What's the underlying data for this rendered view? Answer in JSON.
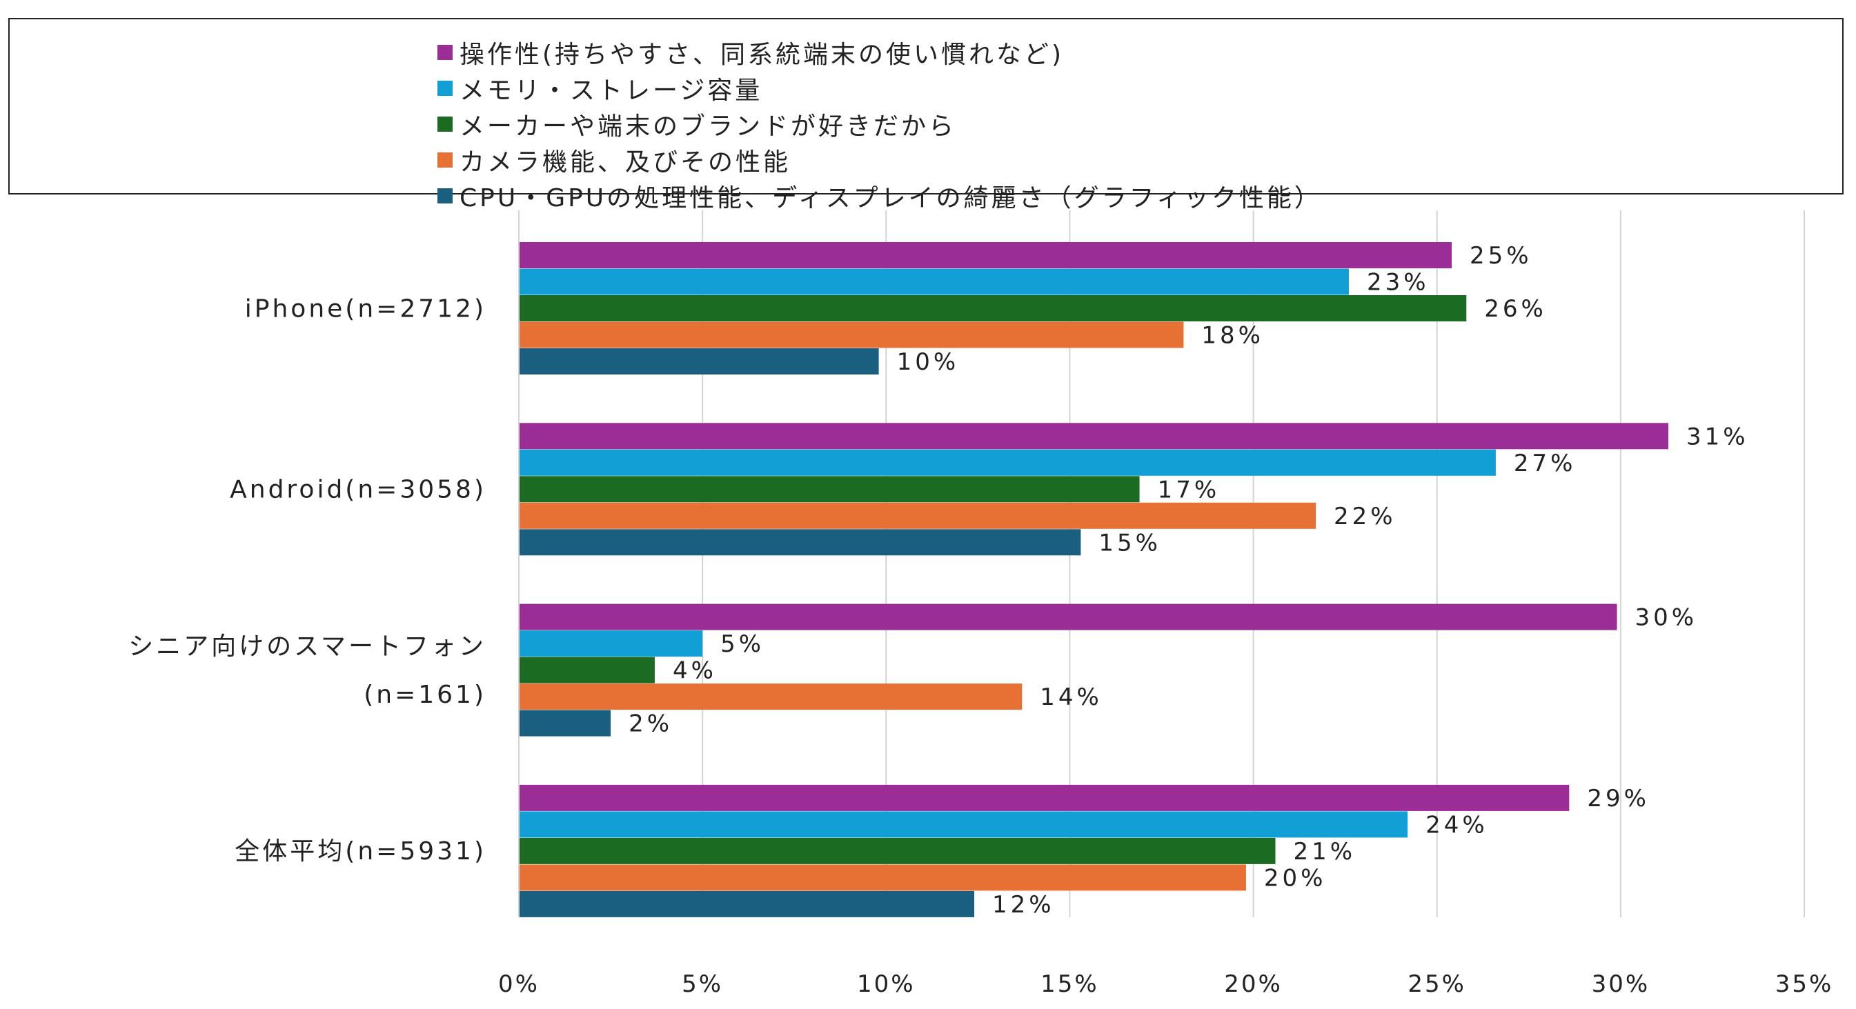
{
  "chart_data": {
    "type": "bar",
    "orientation": "horizontal",
    "title": "",
    "xlabel": "",
    "ylabel": "",
    "xlim": [
      0,
      35
    ],
    "x_ticks": [
      {
        "value": 0,
        "label": "0%"
      },
      {
        "value": 5,
        "label": "5%"
      },
      {
        "value": 10,
        "label": "10%"
      },
      {
        "value": 15,
        "label": "15%"
      },
      {
        "value": 20,
        "label": "20%"
      },
      {
        "value": 25,
        "label": "25%"
      },
      {
        "value": 30,
        "label": "30%"
      },
      {
        "value": 35,
        "label": "35%"
      }
    ],
    "grid": true,
    "legend_position": "top",
    "categories": [
      {
        "id": "iphone",
        "lines": [
          "iPhone(n=2712)"
        ]
      },
      {
        "id": "android",
        "lines": [
          "Android(n=3058)"
        ]
      },
      {
        "id": "senior",
        "lines": [
          "シニア向けのスマートフォン",
          "(n=161)"
        ]
      },
      {
        "id": "overall",
        "lines": [
          "全体平均(n=5931)"
        ]
      }
    ],
    "series": [
      {
        "name": "操作性(持ちやすさ、同系統端末の使い慣れなど)",
        "color": "#9B2D96",
        "values": [
          25.4,
          31.3,
          29.9,
          28.6
        ],
        "labels": [
          "25%",
          "31%",
          "30%",
          "29%"
        ]
      },
      {
        "name": "メモリ・ストレージ容量",
        "color": "#119FD6",
        "values": [
          22.6,
          26.6,
          5.0,
          24.2
        ],
        "labels": [
          "23%",
          "27%",
          "5%",
          "24%"
        ]
      },
      {
        "name": "メーカーや端末のブランドが好きだから",
        "color": "#1B6B23",
        "values": [
          25.8,
          16.9,
          3.7,
          20.6
        ],
        "labels": [
          "26%",
          "17%",
          "4%",
          "21%"
        ]
      },
      {
        "name": "カメラ機能、及びその性能",
        "color": "#E77035",
        "values": [
          18.1,
          21.7,
          13.7,
          19.8
        ],
        "labels": [
          "18%",
          "22%",
          "14%",
          "20%"
        ]
      },
      {
        "name": "CPU・GPUの処理性能、ディスプレイの綺麗さ（グラフィック性能）",
        "color": "#1A5F80",
        "values": [
          9.8,
          15.3,
          2.5,
          12.4
        ],
        "labels": [
          "10%",
          "15%",
          "2%",
          "12%"
        ]
      }
    ]
  }
}
